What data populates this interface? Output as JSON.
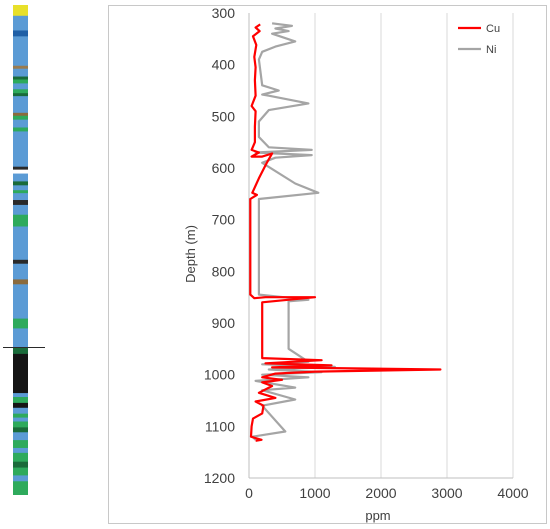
{
  "lithology_log": {
    "segments": [
      {
        "from": 0.0,
        "to": 0.022,
        "color": "#e8e02a"
      },
      {
        "from": 0.022,
        "to": 0.052,
        "color": "#5b9bd5"
      },
      {
        "from": 0.052,
        "to": 0.064,
        "color": "#1f5fa6"
      },
      {
        "from": 0.064,
        "to": 0.124,
        "color": "#5b9bd5"
      },
      {
        "from": 0.124,
        "to": 0.13,
        "color": "#9a7b4f"
      },
      {
        "from": 0.13,
        "to": 0.146,
        "color": "#5b9bd5"
      },
      {
        "from": 0.146,
        "to": 0.152,
        "color": "#1a6b3a"
      },
      {
        "from": 0.152,
        "to": 0.16,
        "color": "#2eaa5c"
      },
      {
        "from": 0.16,
        "to": 0.172,
        "color": "#5b9bd5"
      },
      {
        "from": 0.172,
        "to": 0.18,
        "color": "#2eaa5c"
      },
      {
        "from": 0.18,
        "to": 0.186,
        "color": "#1a6b3a"
      },
      {
        "from": 0.186,
        "to": 0.22,
        "color": "#5b9bd5"
      },
      {
        "from": 0.22,
        "to": 0.226,
        "color": "#8b6b3d"
      },
      {
        "from": 0.226,
        "to": 0.234,
        "color": "#2eaa5c"
      },
      {
        "from": 0.234,
        "to": 0.25,
        "color": "#5b9bd5"
      },
      {
        "from": 0.25,
        "to": 0.258,
        "color": "#2eaa5c"
      },
      {
        "from": 0.258,
        "to": 0.33,
        "color": "#5b9bd5"
      },
      {
        "from": 0.33,
        "to": 0.336,
        "color": "#2a2a2a"
      },
      {
        "from": 0.336,
        "to": 0.344,
        "color": "#ffffff"
      },
      {
        "from": 0.344,
        "to": 0.36,
        "color": "#5b9bd5"
      },
      {
        "from": 0.36,
        "to": 0.368,
        "color": "#1a6b3a"
      },
      {
        "from": 0.368,
        "to": 0.378,
        "color": "#5b9bd5"
      },
      {
        "from": 0.378,
        "to": 0.384,
        "color": "#2eaa5c"
      },
      {
        "from": 0.384,
        "to": 0.398,
        "color": "#5b9bd5"
      },
      {
        "from": 0.398,
        "to": 0.408,
        "color": "#2a2a2a"
      },
      {
        "from": 0.408,
        "to": 0.428,
        "color": "#5b9bd5"
      },
      {
        "from": 0.428,
        "to": 0.452,
        "color": "#2eaa5c"
      },
      {
        "from": 0.452,
        "to": 0.52,
        "color": "#5b9bd5"
      },
      {
        "from": 0.52,
        "to": 0.528,
        "color": "#2a2a2a"
      },
      {
        "from": 0.528,
        "to": 0.56,
        "color": "#5b9bd5"
      },
      {
        "from": 0.56,
        "to": 0.57,
        "color": "#8b6b3d"
      },
      {
        "from": 0.57,
        "to": 0.64,
        "color": "#5b9bd5"
      },
      {
        "from": 0.64,
        "to": 0.66,
        "color": "#2eaa5c"
      },
      {
        "from": 0.66,
        "to": 0.7,
        "color": "#5b9bd5"
      },
      {
        "from": 0.7,
        "to": 0.712,
        "color": "#1a6b3a"
      },
      {
        "from": 0.712,
        "to": 0.792,
        "color": "#151515"
      },
      {
        "from": 0.792,
        "to": 0.8,
        "color": "#5b9bd5"
      },
      {
        "from": 0.8,
        "to": 0.812,
        "color": "#2eaa5c"
      },
      {
        "from": 0.812,
        "to": 0.822,
        "color": "#151515"
      },
      {
        "from": 0.822,
        "to": 0.834,
        "color": "#5b9bd5"
      },
      {
        "from": 0.834,
        "to": 0.842,
        "color": "#2eaa5c"
      },
      {
        "from": 0.842,
        "to": 0.85,
        "color": "#5b9bd5"
      },
      {
        "from": 0.85,
        "to": 0.862,
        "color": "#2eaa5c"
      },
      {
        "from": 0.862,
        "to": 0.872,
        "color": "#1a6b3a"
      },
      {
        "from": 0.872,
        "to": 0.888,
        "color": "#5b9bd5"
      },
      {
        "from": 0.888,
        "to": 0.904,
        "color": "#2eaa5c"
      },
      {
        "from": 0.904,
        "to": 0.914,
        "color": "#5b9bd5"
      },
      {
        "from": 0.914,
        "to": 0.932,
        "color": "#2eaa5c"
      },
      {
        "from": 0.932,
        "to": 0.944,
        "color": "#1a6b3a"
      },
      {
        "from": 0.944,
        "to": 0.96,
        "color": "#2eaa5c"
      },
      {
        "from": 0.96,
        "to": 0.972,
        "color": "#5b9bd5"
      },
      {
        "from": 0.972,
        "to": 1.0,
        "color": "#2eaa5c"
      }
    ]
  },
  "chart_data": {
    "type": "line",
    "xlabel": "ppm",
    "ylabel": "Depth (m)",
    "xlim": [
      0,
      4000
    ],
    "ylim": [
      300,
      1200
    ],
    "y_inverted": true,
    "x_ticks": [
      0,
      1000,
      2000,
      3000,
      4000
    ],
    "y_ticks": [
      300,
      400,
      500,
      600,
      700,
      800,
      900,
      1000,
      1100,
      1200
    ],
    "legend_position": "top-right",
    "series": [
      {
        "name": "Cu",
        "color": "#ff0000",
        "points": [
          [
            170,
            322
          ],
          [
            100,
            328
          ],
          [
            160,
            335
          ],
          [
            60,
            345
          ],
          [
            110,
            362
          ],
          [
            80,
            385
          ],
          [
            100,
            405
          ],
          [
            90,
            430
          ],
          [
            100,
            460
          ],
          [
            40,
            480
          ],
          [
            100,
            490
          ],
          [
            90,
            520
          ],
          [
            90,
            550
          ],
          [
            40,
            565
          ],
          [
            150,
            570
          ],
          [
            40,
            578
          ],
          [
            200,
            578
          ],
          [
            350,
            572
          ],
          [
            270,
            590
          ],
          [
            150,
            620
          ],
          [
            50,
            648
          ],
          [
            120,
            652
          ],
          [
            20,
            660
          ],
          [
            20,
            700
          ],
          [
            20,
            750
          ],
          [
            20,
            800
          ],
          [
            20,
            845
          ],
          [
            80,
            852
          ],
          [
            250,
            850
          ],
          [
            1000,
            850
          ],
          [
            200,
            860
          ],
          [
            200,
            900
          ],
          [
            200,
            940
          ],
          [
            200,
            968
          ],
          [
            1100,
            972
          ],
          [
            250,
            978
          ],
          [
            1250,
            982
          ],
          [
            350,
            986
          ],
          [
            2900,
            990
          ],
          [
            1000,
            994
          ],
          [
            400,
            998
          ],
          [
            200,
            1005
          ],
          [
            500,
            1010
          ],
          [
            200,
            1015
          ],
          [
            350,
            1022
          ],
          [
            150,
            1035
          ],
          [
            400,
            1045
          ],
          [
            100,
            1052
          ],
          [
            220,
            1060
          ],
          [
            200,
            1075
          ],
          [
            60,
            1085
          ],
          [
            40,
            1100
          ],
          [
            30,
            1120
          ],
          [
            190,
            1126
          ],
          [
            100,
            1128
          ]
        ]
      },
      {
        "name": "Ni",
        "color": "#a5a5a5",
        "points": [
          [
            350,
            320
          ],
          [
            650,
            325
          ],
          [
            400,
            330
          ],
          [
            600,
            335
          ],
          [
            350,
            340
          ],
          [
            700,
            355
          ],
          [
            400,
            365
          ],
          [
            200,
            375
          ],
          [
            150,
            390
          ],
          [
            200,
            440
          ],
          [
            450,
            450
          ],
          [
            200,
            458
          ],
          [
            300,
            460
          ],
          [
            900,
            475
          ],
          [
            300,
            488
          ],
          [
            150,
            510
          ],
          [
            150,
            540
          ],
          [
            300,
            560
          ],
          [
            950,
            565
          ],
          [
            100,
            570
          ],
          [
            950,
            575
          ],
          [
            400,
            580
          ],
          [
            200,
            590
          ],
          [
            700,
            630
          ],
          [
            1050,
            648
          ],
          [
            150,
            660
          ],
          [
            150,
            700
          ],
          [
            150,
            750
          ],
          [
            150,
            800
          ],
          [
            150,
            845
          ],
          [
            900,
            855
          ],
          [
            600,
            858
          ],
          [
            600,
            900
          ],
          [
            600,
            950
          ],
          [
            900,
            975
          ],
          [
            200,
            980
          ],
          [
            1300,
            985
          ],
          [
            300,
            990
          ],
          [
            1100,
            995
          ],
          [
            200,
            1000
          ],
          [
            900,
            1005
          ],
          [
            100,
            1012
          ],
          [
            700,
            1025
          ],
          [
            200,
            1030
          ],
          [
            700,
            1048
          ],
          [
            200,
            1060
          ],
          [
            550,
            1110
          ],
          [
            50,
            1120
          ],
          [
            100,
            1126
          ]
        ]
      }
    ]
  }
}
